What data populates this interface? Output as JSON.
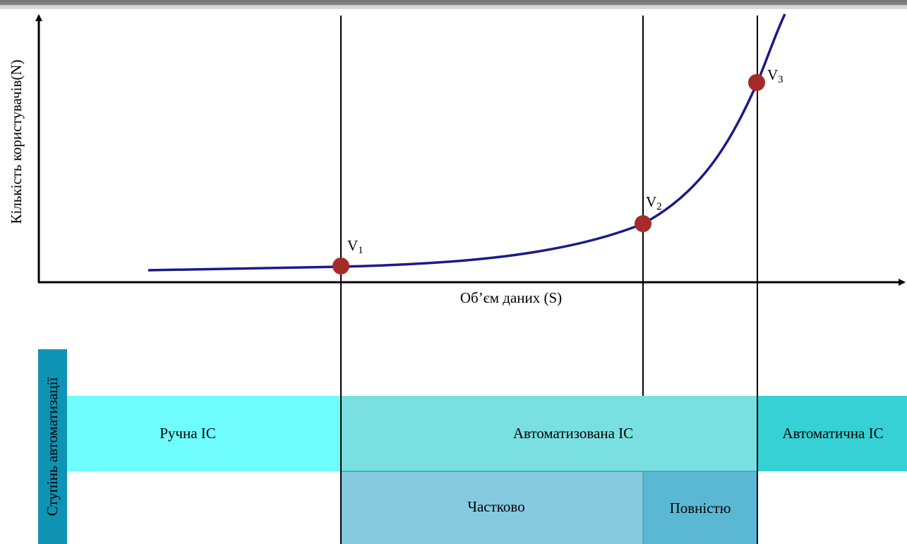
{
  "axes": {
    "y_label": "Кількість користувачів(N)",
    "x_label": "Об’єм даних (S)"
  },
  "points": [
    {
      "name": "V",
      "sub": "1"
    },
    {
      "name": "V",
      "sub": "2"
    },
    {
      "name": "V",
      "sub": "3"
    }
  ],
  "side_label": "Ступінь автоматизації",
  "bands": {
    "manual": "Ручна ІС",
    "automated": "Автоматизована ІС",
    "automatic": "Автоматична ІС",
    "partial": "Частково",
    "full": "Повністю"
  },
  "colors": {
    "curve": "#1a1a8c",
    "point": "#a52a2a",
    "side_label_bg": "#0e93b5",
    "manual_bg": "#6ffcfd",
    "automated_bg": "#79dfe0",
    "automatic_bg": "#36d1d4",
    "partial_bg": "#86cae0",
    "full_bg": "#5bb8d4"
  }
}
